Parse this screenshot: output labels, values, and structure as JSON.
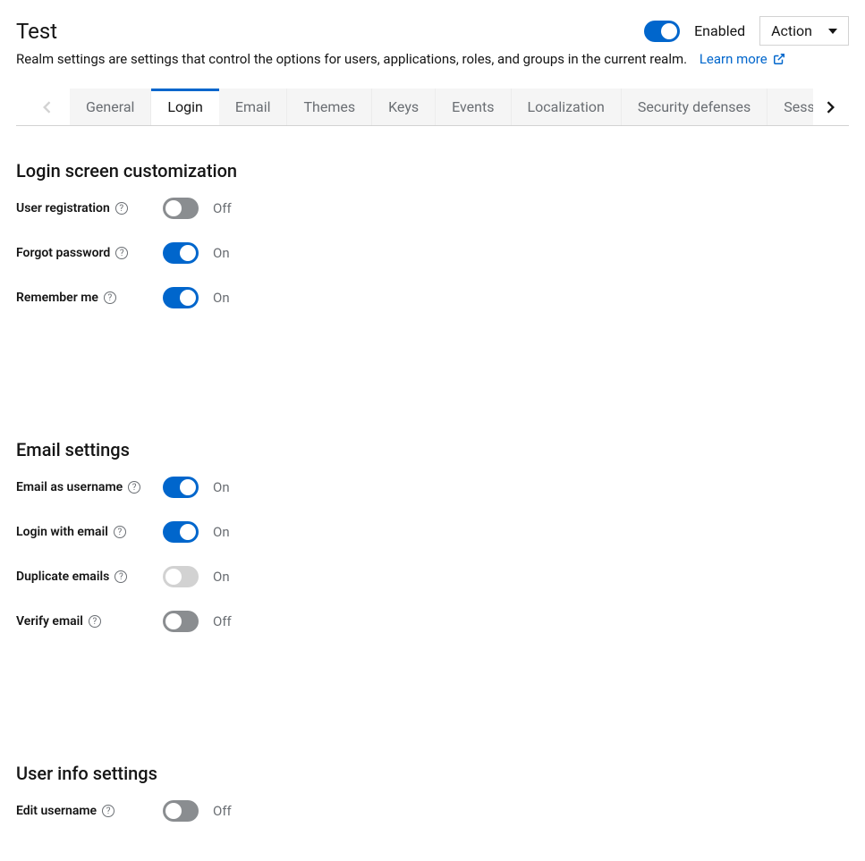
{
  "header": {
    "title": "Test",
    "subtitle": "Realm settings are settings that control the options for users, applications, roles, and groups in the current realm.",
    "learn_more": "Learn more",
    "enabled_label": "Enabled",
    "enabled_state": true,
    "action_label": "Action"
  },
  "colors": {
    "primary": "#0066cc",
    "switch_off": "#8a8d90",
    "switch_disabled": "#d2d2d2",
    "link": "#0066cc",
    "text_muted": "#6a6e73"
  },
  "tabs": {
    "active_index": 1,
    "items": [
      "General",
      "Login",
      "Email",
      "Themes",
      "Keys",
      "Events",
      "Localization",
      "Security defenses",
      "Session"
    ]
  },
  "sections": {
    "login": {
      "title": "Login screen customization",
      "rows": [
        {
          "label": "User registration",
          "state": "off",
          "state_label": "Off"
        },
        {
          "label": "Forgot password",
          "state": "on",
          "state_label": "On"
        },
        {
          "label": "Remember me",
          "state": "on",
          "state_label": "On"
        }
      ]
    },
    "email": {
      "title": "Email settings",
      "rows": [
        {
          "label": "Email as username",
          "state": "on",
          "state_label": "On"
        },
        {
          "label": "Login with email",
          "state": "on",
          "state_label": "On"
        },
        {
          "label": "Duplicate emails",
          "state": "disabled",
          "state_label": "On"
        },
        {
          "label": "Verify email",
          "state": "off",
          "state_label": "Off"
        }
      ]
    },
    "userinfo": {
      "title": "User info settings",
      "rows": [
        {
          "label": "Edit username",
          "state": "off",
          "state_label": "Off"
        }
      ]
    }
  }
}
